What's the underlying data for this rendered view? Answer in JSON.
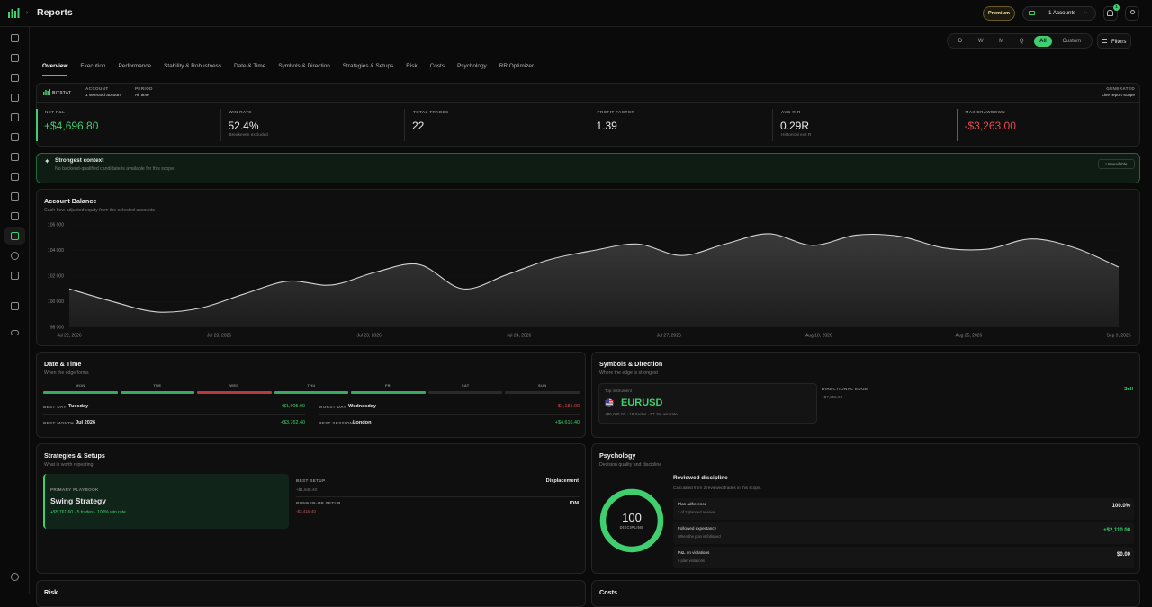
{
  "header": {
    "title": "Reports",
    "badge": "Premium",
    "accounts": "1 Accounts",
    "notifications": "1"
  },
  "period_tabs": [
    "D",
    "W",
    "M",
    "Q",
    "All",
    "Custom"
  ],
  "active_period": 4,
  "filters": "Filters",
  "nav_tabs": [
    "Overview",
    "Execution",
    "Performance",
    "Stability & Robustness",
    "Date & Time",
    "Symbols & Direction",
    "Strategies & Setups",
    "Risk",
    "Costs",
    "Psychology",
    "RR Optimizer"
  ],
  "active_tab": 0,
  "summary": {
    "brand": "BITSTAT",
    "account_label": "ACCOUNT",
    "account": "1 selected account",
    "period_label": "PERIOD",
    "period": "All time",
    "generated_label": "GENERATED",
    "generated": "Live report scope",
    "kpis": [
      {
        "label": "NET P&L",
        "value": "+$4,696.80",
        "tone": "positive"
      },
      {
        "label": "WIN RATE",
        "value": "52.4%",
        "note": "Breakeven excluded",
        "tone": "neutral"
      },
      {
        "label": "TOTAL TRADES",
        "value": "22",
        "tone": "neutral"
      },
      {
        "label": "PROFIT FACTOR",
        "value": "1.39",
        "tone": "neutral"
      },
      {
        "label": "AVG R:R",
        "value": "0.29R",
        "note": "Historical exit R",
        "tone": "neutral"
      },
      {
        "label": "MAX DRAWDOWN",
        "value": "-$3,263.00",
        "tone": "negative"
      }
    ]
  },
  "context": {
    "title": "Strongest context",
    "text": "No backend-qualified candidate is available for this scope.",
    "status": "Unavailable"
  },
  "balance": {
    "title": "Account Balance",
    "subtitle": "Cash-flow-adjusted equity from the selected accounts",
    "type": "area",
    "x_labels": [
      "Jul 22, 2026",
      "Jul 23, 2026",
      "Jul 23, 2026",
      "Jul 24, 2026",
      "Jul 27, 2026",
      "Aug 10, 2026",
      "Aug 25, 2026",
      "Sep 9, 2026"
    ],
    "values": [
      101000,
      100000,
      99200,
      99500,
      100600,
      101600,
      101300,
      102300,
      102900,
      101000,
      102100,
      103300,
      104000,
      104500,
      103600,
      104500,
      105300,
      104400,
      105200,
      105100,
      104200,
      104100,
      104900,
      104200,
      102700
    ],
    "ylim": [
      98000,
      106000
    ],
    "yticks": [
      {
        "value": 98000,
        "label": "98 000"
      },
      {
        "value": 100000,
        "label": "100 000"
      },
      {
        "value": 102000,
        "label": "102 000"
      },
      {
        "value": 104000,
        "label": "104 000"
      },
      {
        "value": 106000,
        "label": "106 000"
      }
    ],
    "color": "#d4d4d4"
  },
  "date_time": {
    "title": "Date & Time",
    "subtitle": "When the edge forms",
    "days": [
      {
        "name": "MON",
        "tone": "positive"
      },
      {
        "name": "TUE",
        "tone": "positive"
      },
      {
        "name": "WED",
        "tone": "negative"
      },
      {
        "name": "THU",
        "tone": "positive"
      },
      {
        "name": "FRI",
        "tone": "positive"
      },
      {
        "name": "SAT",
        "tone": "neutral"
      },
      {
        "name": "SUN",
        "tone": "neutral"
      }
    ],
    "best_day_label": "BEST DAY",
    "best_day": "Tuesday",
    "best_day_value": "+$1,905.00",
    "worst_day_label": "WORST DAY",
    "worst_day": "Wednesday",
    "worst_day_value": "-$1,181.00",
    "best_month_label": "BEST MONTH",
    "best_month": "Jul 2026",
    "best_month_value": "+$3,762.40",
    "best_session_label": "BEST SESSION",
    "best_session": "London",
    "best_session_value": "+$4,616.40"
  },
  "symbols": {
    "title": "Symbols & Direction",
    "subtitle": "Where the edge is strongest",
    "top_label": "Top instrument",
    "symbol": "EURUSD",
    "symbol_stats": "+$6,005.00 · 18 trades · 57.1% win rate",
    "direction_label": "DIRECTIONAL EDGE",
    "direction": "Sell",
    "direction_value": "+$7,355.00"
  },
  "strategies": {
    "title": "Strategies & Setups",
    "subtitle": "What is worth repeating",
    "playbook_label": "PRIMARY PLAYBOOK",
    "playbook": "Swing Strategy",
    "playbook_stats": "+$5,761.60 · 5 trades · 100% win rate",
    "best_setup_label": "BEST SETUP",
    "best_setup": "Displacement",
    "best_setup_value": "+$1,645.40",
    "runner_label": "RUNNER-UP SETUP",
    "runner": "IDM",
    "runner_value": "-$2,418.40"
  },
  "psychology": {
    "title": "Psychology",
    "subtitle": "Decision quality and discipline",
    "score": 100,
    "score_range": [
      0,
      100
    ],
    "score_label": "DISCIPLINE",
    "heading": "Reviewed discipline",
    "text": "Calculated from 2 reviewed trades in this scope.",
    "rows": [
      {
        "label": "Plan adherence",
        "note": "2 of 2 planned reviews",
        "value": "100.0%",
        "tone": "neutral"
      },
      {
        "label": "Followed expectancy",
        "note": "When the plan is followed",
        "value": "+$2,110.00",
        "tone": "positive"
      },
      {
        "label": "P&L on violations",
        "note": "0 plan violations",
        "value": "$0.00",
        "tone": "neutral"
      }
    ]
  },
  "bottom": {
    "risk": "Risk",
    "costs": "Costs"
  }
}
